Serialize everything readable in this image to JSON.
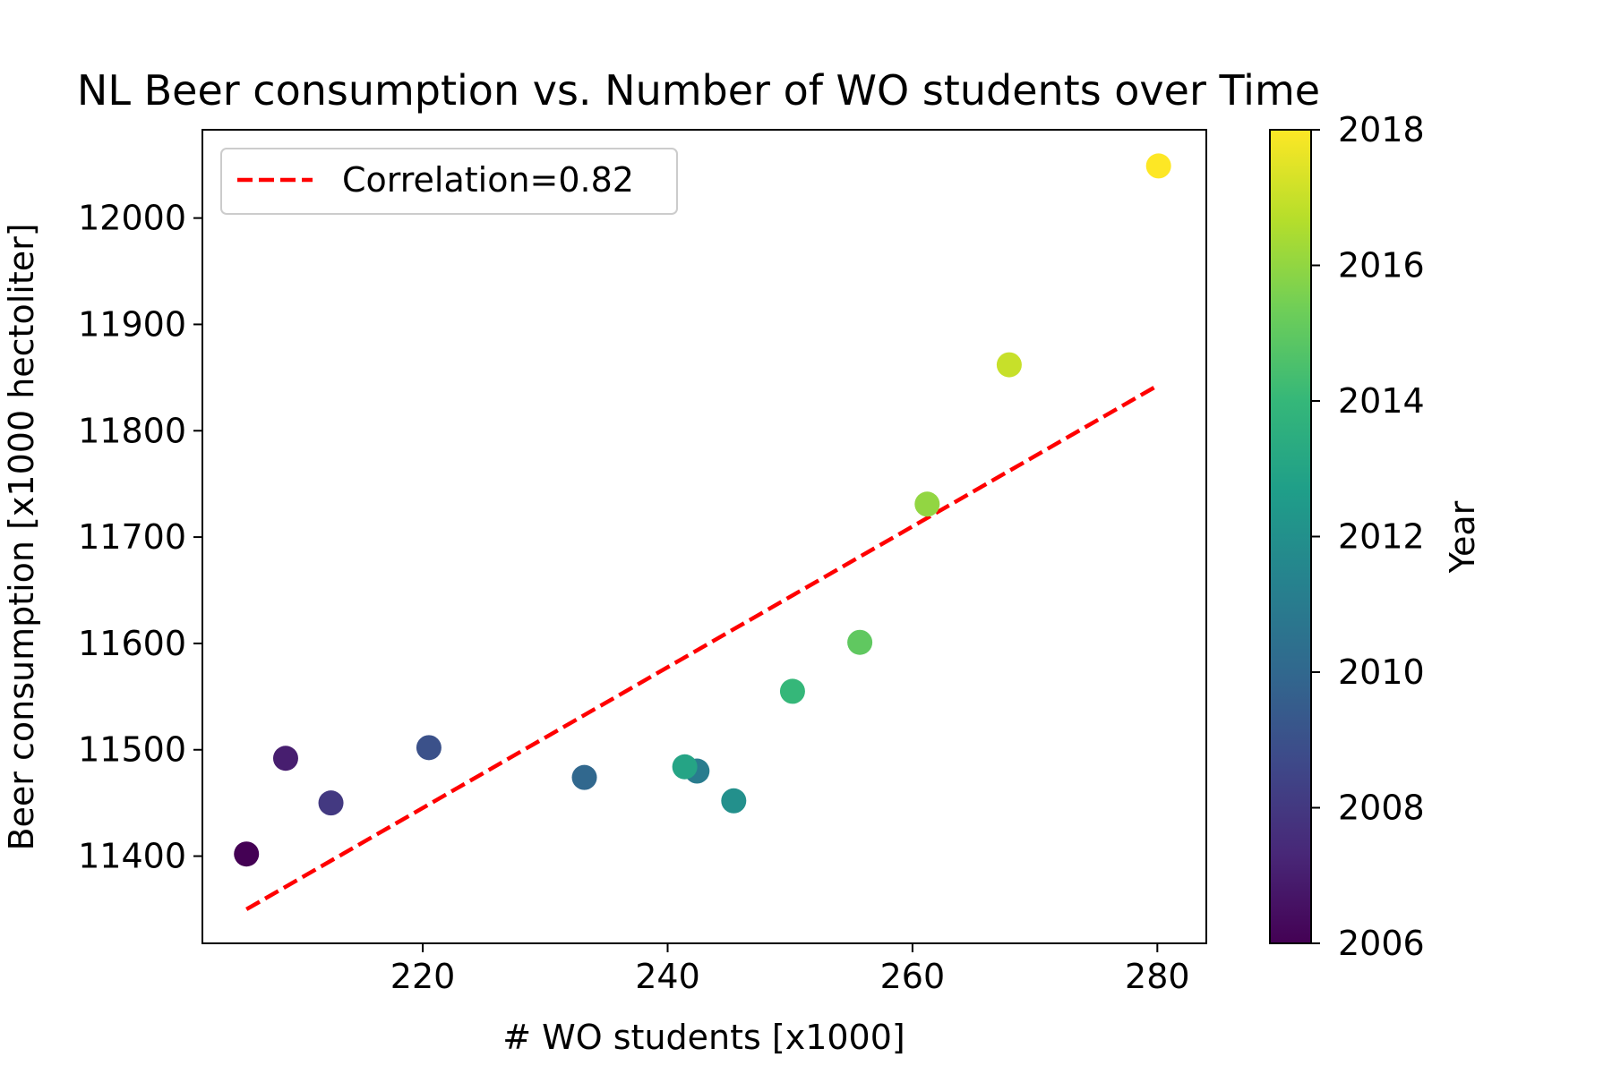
{
  "chart_data": {
    "type": "scatter",
    "title": "NL Beer consumption vs. Number of WO students over Time",
    "xlabel": "# WO students [x1000]",
    "ylabel": "Beer consumption [x1000 hectoliter]",
    "xlim": [
      202,
      284
    ],
    "ylim": [
      11318,
      12083
    ],
    "xticks": [
      220,
      240,
      260,
      280
    ],
    "yticks": [
      11400,
      11500,
      11600,
      11700,
      11800,
      11900,
      12000
    ],
    "grid": false,
    "points": [
      {
        "year": 2006,
        "x": 205.6,
        "y": 11402
      },
      {
        "year": 2007,
        "x": 208.8,
        "y": 11492
      },
      {
        "year": 2008,
        "x": 212.5,
        "y": 11450
      },
      {
        "year": 2009,
        "x": 220.5,
        "y": 11502
      },
      {
        "year": 2010,
        "x": 233.2,
        "y": 11474
      },
      {
        "year": 2011,
        "x": 242.4,
        "y": 11480
      },
      {
        "year": 2012,
        "x": 245.4,
        "y": 11452
      },
      {
        "year": 2013,
        "x": 241.4,
        "y": 11484
      },
      {
        "year": 2014,
        "x": 250.2,
        "y": 11555
      },
      {
        "year": 2015,
        "x": 255.7,
        "y": 11601
      },
      {
        "year": 2016,
        "x": 261.2,
        "y": 11731
      },
      {
        "year": 2017,
        "x": 267.9,
        "y": 11862
      },
      {
        "year": 2018,
        "x": 280.1,
        "y": 12049
      }
    ],
    "trend_line": {
      "name": "Correlation=0.82",
      "color": "#ff0000",
      "style": "dashed",
      "x": [
        205.6,
        280.1
      ],
      "y": [
        11350,
        11843
      ]
    },
    "legend": {
      "placement": "upper-left",
      "entries": [
        "Correlation=0.82"
      ]
    },
    "colorbar": {
      "label": "Year",
      "range": [
        2006,
        2018
      ],
      "ticks": [
        2006,
        2008,
        2010,
        2012,
        2014,
        2016,
        2018
      ],
      "colormap": "viridis",
      "colors": [
        "#440154",
        "#482878",
        "#3e4989",
        "#31688e",
        "#26828e",
        "#1f9e89",
        "#35b779",
        "#6ece58",
        "#b5de2b",
        "#fde725"
      ]
    }
  }
}
